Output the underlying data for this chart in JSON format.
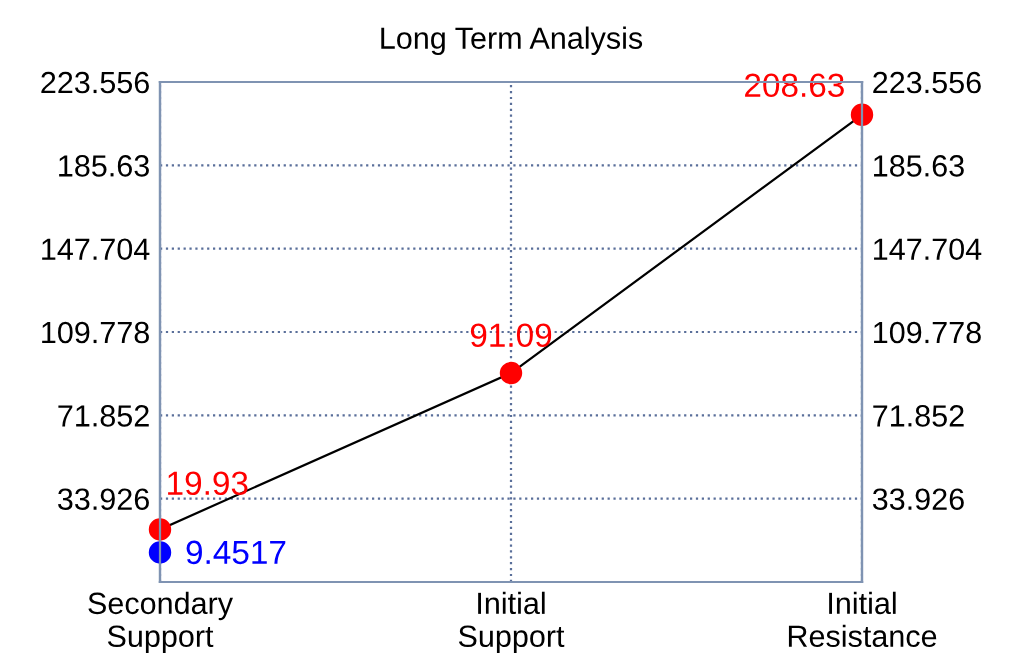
{
  "chart_data": {
    "type": "line",
    "title": "Long Term Analysis",
    "categories": [
      "Secondary\nSupport",
      "Initial\nSupport",
      "Initial\nResistance"
    ],
    "series": [
      {
        "color": "#ff0000",
        "values": [
          19.93,
          91.09,
          208.63
        ],
        "value_labels": [
          "19.93",
          "91.09",
          "208.63"
        ],
        "marker": "circle"
      },
      {
        "type": "scatter",
        "color": "#0000ff",
        "values": [
          9.4517,
          null,
          null
        ],
        "value_labels": [
          "9.4517",
          null,
          null
        ],
        "marker": "circle"
      }
    ],
    "ylim": [
      -4,
      223.556
    ],
    "yticks": [
      33.926,
      71.852,
      109.778,
      147.704,
      185.63,
      223.556
    ],
    "y2lim": [
      -4,
      223.556
    ],
    "y2ticks": [
      33.926,
      71.852,
      109.778,
      147.704,
      185.63,
      223.556
    ],
    "grid": true,
    "line_style": "solid"
  }
}
